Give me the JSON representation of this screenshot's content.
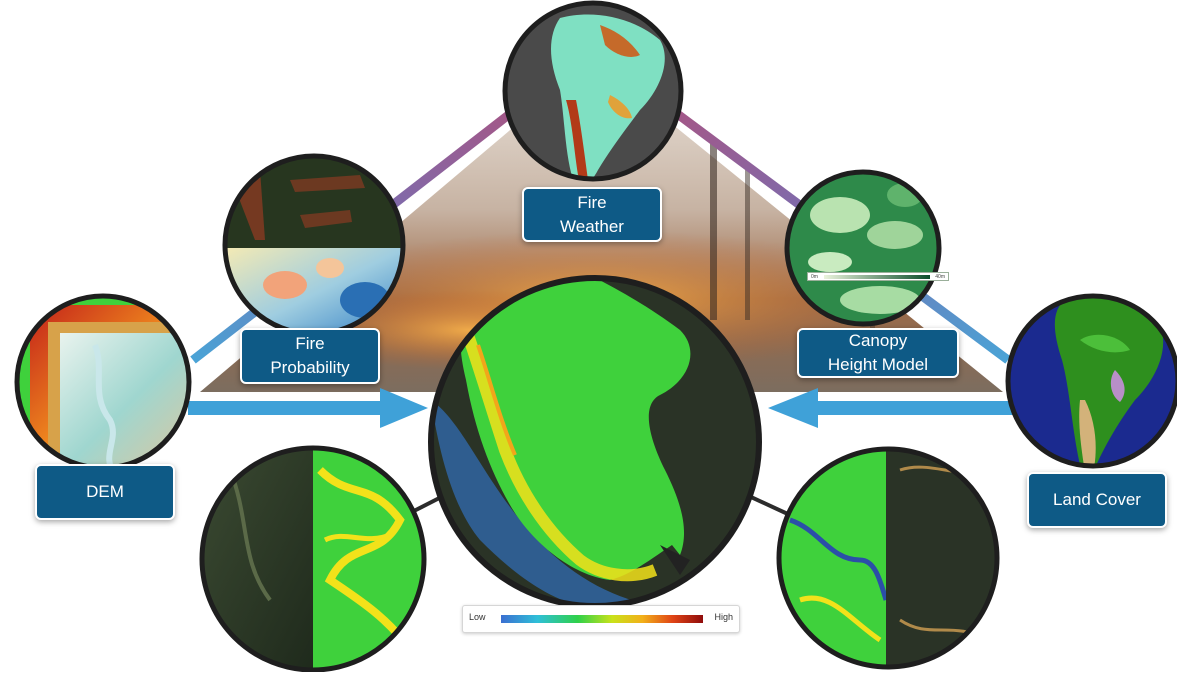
{
  "nodes": {
    "fire_weather": "Fire\nWeather",
    "fire_probability": "Fire\nProbability",
    "canopy_height": "Canopy\nHeight Model",
    "dem": "DEM",
    "land_cover": "Land Cover"
  },
  "legend": {
    "low": "Low",
    "high": "High"
  },
  "canopy_scale": {
    "low": "0m",
    "high": "40m"
  },
  "colors": {
    "label_bg": "#0e5a86",
    "arrow_blue": "#3fa1d8",
    "triangle_pink": "#a0466a",
    "map_green": "#3fd13c",
    "dark_terrain": "#2a3326"
  },
  "icons": [
    "arrow-right-icon",
    "arrow-left-icon"
  ]
}
